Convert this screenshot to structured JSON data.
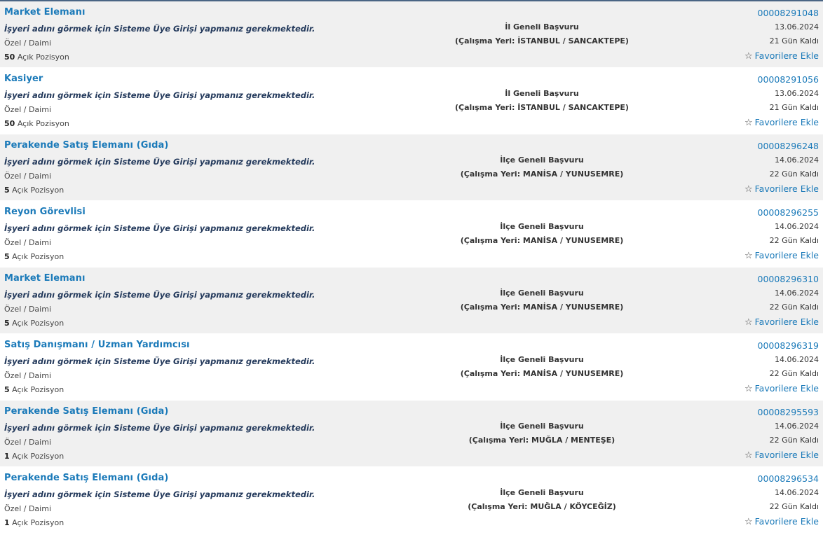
{
  "common": {
    "notice": "İşyeri adını görmek için Sisteme Üye Girişi yapmanız gerekmektedir.",
    "positions_suffix": "Açık Pozisyon",
    "favorite_label": "Favorilere Ekle",
    "favorite_icon": "star-outline-icon"
  },
  "jobs": [
    {
      "title": "Market Elemanı",
      "type": "Özel / Daimi",
      "positions": "50",
      "scope": "İl Geneli Başvuru",
      "location": "(Çalışma Yeri: İSTANBUL / SANCAKTEPE)",
      "id": "00008291048",
      "date": "13.06.2024",
      "remaining": "21 Gün Kaldı"
    },
    {
      "title": "Kasiyer",
      "type": "Özel / Daimi",
      "positions": "50",
      "scope": "İl Geneli Başvuru",
      "location": "(Çalışma Yeri: İSTANBUL / SANCAKTEPE)",
      "id": "00008291056",
      "date": "13.06.2024",
      "remaining": "21 Gün Kaldı"
    },
    {
      "title": "Perakende Satış Elemanı (Gıda)",
      "type": "Özel / Daimi",
      "positions": "5",
      "scope": "İlçe Geneli Başvuru",
      "location": "(Çalışma Yeri: MANİSA / YUNUSEMRE)",
      "id": "00008296248",
      "date": "14.06.2024",
      "remaining": "22 Gün Kaldı"
    },
    {
      "title": "Reyon Görevlisi",
      "type": "Özel / Daimi",
      "positions": "5",
      "scope": "İlçe Geneli Başvuru",
      "location": "(Çalışma Yeri: MANİSA / YUNUSEMRE)",
      "id": "00008296255",
      "date": "14.06.2024",
      "remaining": "22 Gün Kaldı"
    },
    {
      "title": "Market Elemanı",
      "type": "Özel / Daimi",
      "positions": "5",
      "scope": "İlçe Geneli Başvuru",
      "location": "(Çalışma Yeri: MANİSA / YUNUSEMRE)",
      "id": "00008296310",
      "date": "14.06.2024",
      "remaining": "22 Gün Kaldı"
    },
    {
      "title": "Satış Danışmanı / Uzman Yardımcısı",
      "type": "Özel / Daimi",
      "positions": "5",
      "scope": "İlçe Geneli Başvuru",
      "location": "(Çalışma Yeri: MANİSA / YUNUSEMRE)",
      "id": "00008296319",
      "date": "14.06.2024",
      "remaining": "22 Gün Kaldı"
    },
    {
      "title": "Perakende Satış Elemanı (Gıda)",
      "type": "Özel / Daimi",
      "positions": "1",
      "scope": "İlçe Geneli Başvuru",
      "location": "(Çalışma Yeri: MUĞLA / MENTEŞE)",
      "id": "00008295593",
      "date": "14.06.2024",
      "remaining": "22 Gün Kaldı"
    },
    {
      "title": "Perakende Satış Elemanı (Gıda)",
      "type": "Özel / Daimi",
      "positions": "1",
      "scope": "İlçe Geneli Başvuru",
      "location": "(Çalışma Yeri: MUĞLA / KÖYCEĞİZ)",
      "id": "00008296534",
      "date": "14.06.2024",
      "remaining": "22 Gün Kaldı"
    }
  ]
}
